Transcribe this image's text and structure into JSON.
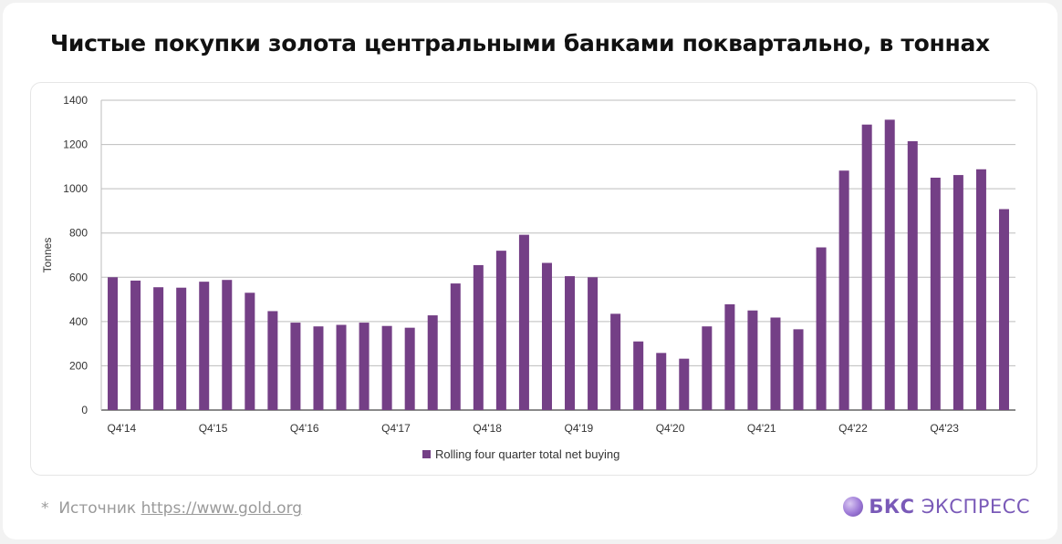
{
  "title": "Чистые покупки золота центральными банками поквартально, в тоннах",
  "chart_data": {
    "type": "bar",
    "ylabel": "Tonnes",
    "ylim": [
      0,
      1400
    ],
    "yticks": [
      0,
      200,
      400,
      600,
      800,
      1000,
      1200,
      1400
    ],
    "grid": true,
    "bar_color": "#743f86",
    "x_labels": [
      {
        "index": 0,
        "label": "Q4'14"
      },
      {
        "index": 4,
        "label": "Q4'15"
      },
      {
        "index": 8,
        "label": "Q4'16"
      },
      {
        "index": 12,
        "label": "Q4'17"
      },
      {
        "index": 16,
        "label": "Q4'18"
      },
      {
        "index": 20,
        "label": "Q4'19"
      },
      {
        "index": 24,
        "label": "Q4'20"
      },
      {
        "index": 28,
        "label": "Q4'21"
      },
      {
        "index": 32,
        "label": "Q4'22"
      },
      {
        "index": 36,
        "label": "Q4'23"
      }
    ],
    "series": [
      {
        "name": "Rolling four quarter total net buying",
        "values": [
          600,
          585,
          555,
          553,
          580,
          588,
          530,
          447,
          395,
          378,
          385,
          395,
          380,
          372,
          428,
          572,
          655,
          720,
          792,
          665,
          605,
          600,
          435,
          310,
          258,
          232,
          378,
          478,
          450,
          418,
          365,
          735,
          1082,
          1290,
          1312,
          1215,
          1050,
          1062,
          1088,
          908
        ]
      }
    ],
    "legend": {
      "label": "Rolling four quarter total net buying",
      "position": "bottom-center"
    }
  },
  "footer": {
    "star": "*",
    "source_prefix": "Источник",
    "source_link": "https://www.gold.org"
  },
  "brand": {
    "bold": "БКС",
    "rest": "ЭКСПРЕСС",
    "icon": "bcs-logo-icon"
  }
}
